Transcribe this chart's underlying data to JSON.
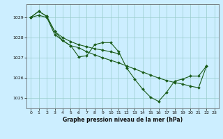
{
  "background_color": "#cceeff",
  "grid_color": "#99cccc",
  "line_color": "#1a5c1a",
  "xlim": [
    -0.5,
    23.5
  ],
  "ylim": [
    1024.5,
    1029.65
  ],
  "yticks": [
    1025,
    1026,
    1027,
    1028,
    1029
  ],
  "xticks": [
    0,
    1,
    2,
    3,
    4,
    5,
    6,
    7,
    8,
    9,
    10,
    11,
    12,
    13,
    14,
    15,
    16,
    17,
    18,
    19,
    20,
    21,
    22,
    23
  ],
  "xlabel": "Graphe pression niveau de la mer (hPa)",
  "line1_x": [
    0,
    1,
    2,
    3,
    4,
    5,
    6,
    7,
    8,
    9,
    10,
    11,
    12,
    13,
    14,
    15,
    16,
    17,
    18,
    19,
    20,
    21,
    22
  ],
  "line1_y": [
    1029.0,
    1029.3,
    1029.05,
    1028.3,
    1027.85,
    1027.6,
    1027.05,
    1027.1,
    1027.65,
    1027.75,
    1027.75,
    1027.3,
    1026.5,
    1025.95,
    1025.45,
    1025.05,
    1024.85,
    1025.3,
    1025.85,
    1025.95,
    1026.1,
    1026.1,
    1026.6
  ],
  "line2_x": [
    0,
    1,
    2,
    3,
    4,
    5,
    6,
    7,
    8,
    9,
    10,
    11
  ],
  "line2_y": [
    1029.0,
    1029.3,
    1029.05,
    1028.3,
    1028.0,
    1027.8,
    1027.65,
    1027.55,
    1027.45,
    1027.38,
    1027.3,
    1027.2
  ],
  "line3_x": [
    0,
    1,
    2,
    3,
    4,
    5,
    6,
    7,
    8,
    9,
    10,
    11,
    12,
    13,
    14,
    15,
    16,
    17,
    18,
    19,
    20,
    21,
    22
  ],
  "line3_y": [
    1029.0,
    1029.1,
    1029.0,
    1028.15,
    1027.85,
    1027.6,
    1027.5,
    1027.3,
    1027.15,
    1027.0,
    1026.88,
    1026.75,
    1026.6,
    1026.45,
    1026.3,
    1026.15,
    1026.0,
    1025.88,
    1025.78,
    1025.7,
    1025.6,
    1025.52,
    1026.6
  ]
}
